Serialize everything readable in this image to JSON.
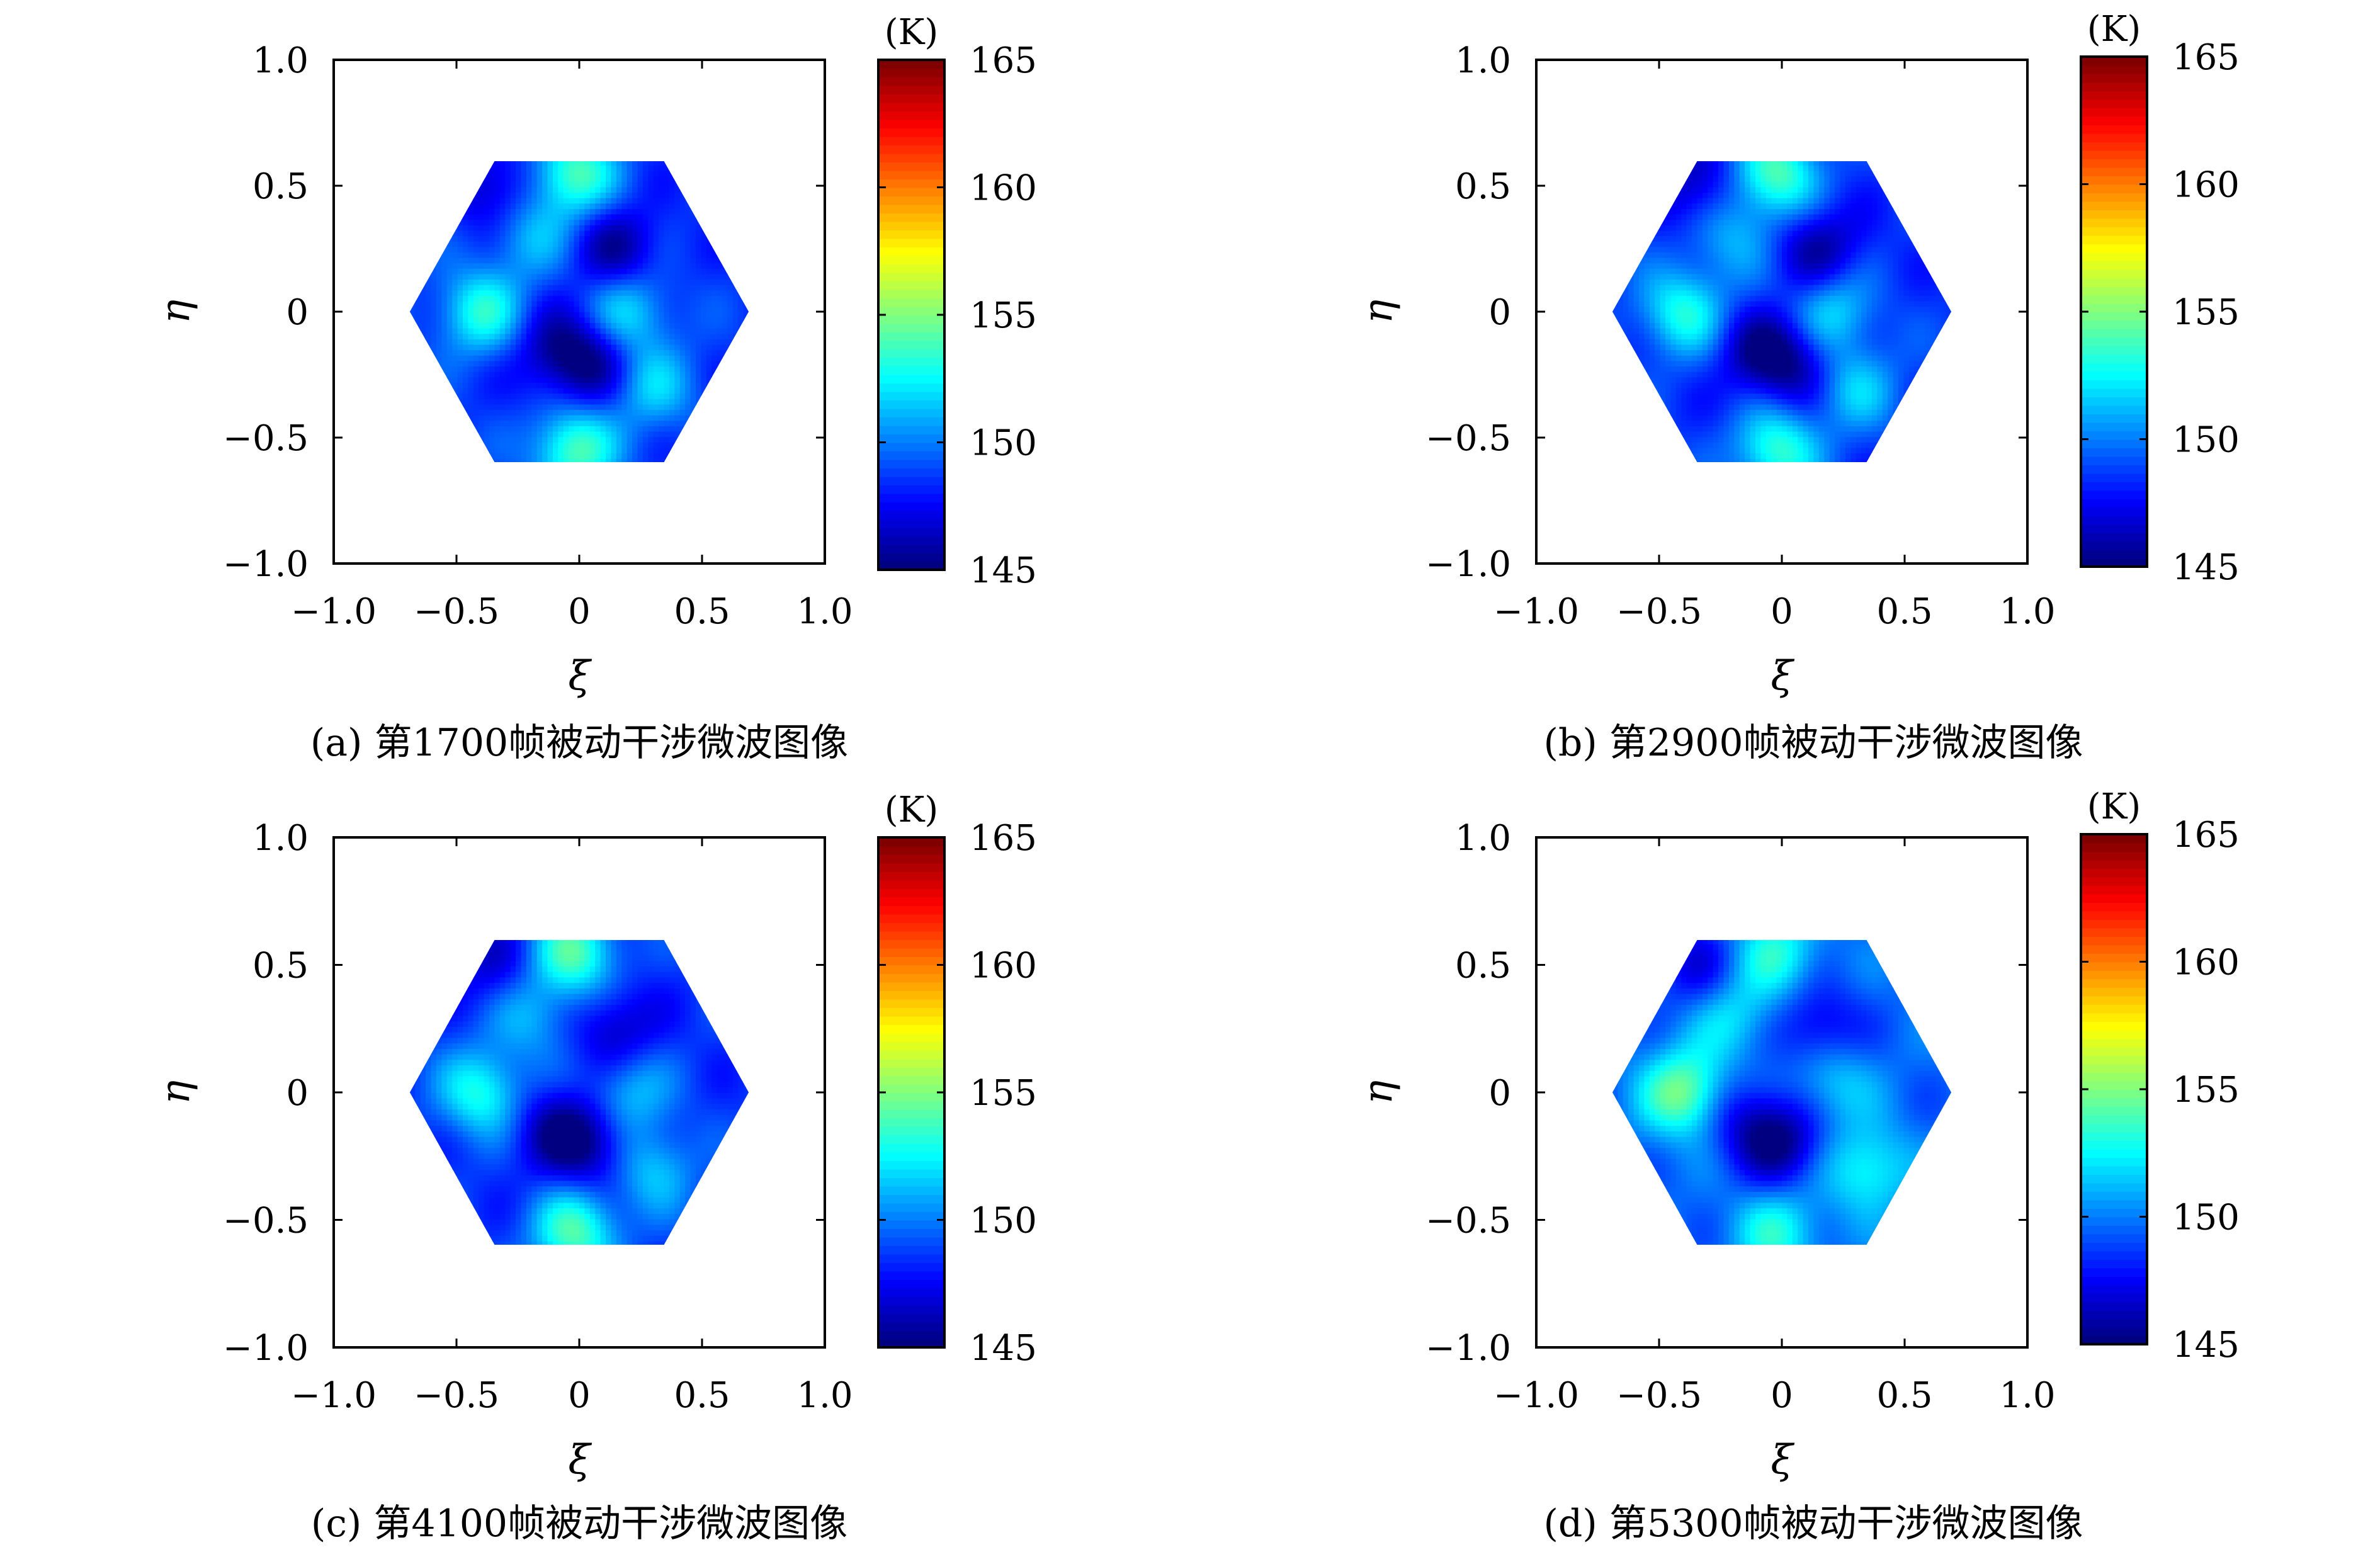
{
  "chart_data": [
    {
      "type": "heatmap",
      "caption": "(a) 第1700帧被动干涉微波图像",
      "xlabel": "ξ",
      "ylabel": "η",
      "xlim": [
        -1.0,
        1.0
      ],
      "ylim": [
        -1.0,
        1.0
      ],
      "xticks": [
        -1.0,
        -0.5,
        0,
        0.5,
        1.0
      ],
      "yticks": [
        -1.0,
        -0.5,
        0,
        0.5,
        1.0
      ],
      "xtick_labels": [
        "−1.0",
        "−0.5",
        "0",
        "0.5",
        "1.0"
      ],
      "ytick_labels": [
        "−1.0",
        "−0.5",
        "0",
        "0.5",
        "1.0"
      ],
      "colorbar": {
        "label": "(K)",
        "range": [
          145,
          165
        ],
        "ticks": [
          145,
          150,
          155,
          160,
          165
        ],
        "tick_labels": [
          "145",
          "150",
          "155",
          "160",
          "165"
        ],
        "colormap": "jet"
      },
      "domain": "hexagon, radius 0.69",
      "base_level": 148.5,
      "features": [
        {
          "xi": -0.4,
          "eta": 0.0,
          "value": 153.0
        },
        {
          "xi": -0.02,
          "eta": 0.55,
          "value": 154.0
        },
        {
          "xi": -0.02,
          "eta": -0.55,
          "value": 154.0
        },
        {
          "xi": 0.2,
          "eta": 0.0,
          "value": 152.0
        },
        {
          "xi": 0.3,
          "eta": -0.3,
          "value": 151.5
        },
        {
          "xi": -0.2,
          "eta": 0.3,
          "value": 151.0
        },
        {
          "xi": 0.05,
          "eta": -0.2,
          "value": 145.5
        },
        {
          "xi": 0.15,
          "eta": 0.25,
          "value": 145.5
        },
        {
          "xi": -0.1,
          "eta": -0.15,
          "value": 146.0
        },
        {
          "xi": -0.35,
          "eta": 0.5,
          "value": 146.0
        }
      ]
    },
    {
      "type": "heatmap",
      "caption": "(b) 第2900帧被动干涉微波图像",
      "xlabel": "ξ",
      "ylabel": "η",
      "xlim": [
        -1.0,
        1.0
      ],
      "ylim": [
        -1.0,
        1.0
      ],
      "xticks": [
        -1.0,
        -0.5,
        0,
        0.5,
        1.0
      ],
      "yticks": [
        -1.0,
        -0.5,
        0,
        0.5,
        1.0
      ],
      "xtick_labels": [
        "−1.0",
        "−0.5",
        "0",
        "0.5",
        "1.0"
      ],
      "ytick_labels": [
        "−1.0",
        "−0.5",
        "0",
        "0.5",
        "1.0"
      ],
      "colorbar": {
        "label": "(K)",
        "range": [
          145,
          165
        ],
        "ticks": [
          145,
          150,
          155,
          160,
          165
        ],
        "tick_labels": [
          "145",
          "150",
          "155",
          "160",
          "165"
        ],
        "colormap": "jet"
      },
      "domain": "hexagon, radius 0.69",
      "base_level": 148.5,
      "features": [
        {
          "xi": -0.4,
          "eta": 0.0,
          "value": 153.0
        },
        {
          "xi": -0.02,
          "eta": 0.55,
          "value": 154.0
        },
        {
          "xi": -0.02,
          "eta": -0.55,
          "value": 153.5
        },
        {
          "xi": 0.2,
          "eta": 0.0,
          "value": 152.0
        },
        {
          "xi": 0.3,
          "eta": -0.3,
          "value": 151.5
        },
        {
          "xi": -0.2,
          "eta": 0.3,
          "value": 151.0
        },
        {
          "xi": 0.05,
          "eta": -0.2,
          "value": 145.5
        },
        {
          "xi": 0.15,
          "eta": 0.25,
          "value": 145.5
        },
        {
          "xi": -0.1,
          "eta": -0.15,
          "value": 146.0
        },
        {
          "xi": -0.35,
          "eta": 0.5,
          "value": 146.0
        }
      ]
    },
    {
      "type": "heatmap",
      "caption": "(c) 第4100帧被动干涉微波图像",
      "xlabel": "ξ",
      "ylabel": "η",
      "xlim": [
        -1.0,
        1.0
      ],
      "ylim": [
        -1.0,
        1.0
      ],
      "xticks": [
        -1.0,
        -0.5,
        0,
        0.5,
        1.0
      ],
      "yticks": [
        -1.0,
        -0.5,
        0,
        0.5,
        1.0
      ],
      "xtick_labels": [
        "−1.0",
        "−0.5",
        "0",
        "0.5",
        "1.0"
      ],
      "ytick_labels": [
        "−1.0",
        "−0.5",
        "0",
        "0.5",
        "1.0"
      ],
      "colorbar": {
        "label": "(K)",
        "range": [
          145,
          165
        ],
        "ticks": [
          145,
          150,
          155,
          160,
          165
        ],
        "tick_labels": [
          "145",
          "150",
          "155",
          "160",
          "165"
        ],
        "colormap": "jet"
      },
      "domain": "hexagon, radius 0.69",
      "base_level": 148.5,
      "features": [
        {
          "xi": -0.4,
          "eta": 0.0,
          "value": 153.0
        },
        {
          "xi": -0.02,
          "eta": 0.55,
          "value": 154.0
        },
        {
          "xi": -0.02,
          "eta": -0.55,
          "value": 154.0
        },
        {
          "xi": 0.2,
          "eta": 0.0,
          "value": 151.5
        },
        {
          "xi": 0.3,
          "eta": -0.3,
          "value": 151.5
        },
        {
          "xi": -0.2,
          "eta": 0.3,
          "value": 151.0
        },
        {
          "xi": 0.05,
          "eta": -0.2,
          "value": 145.5
        },
        {
          "xi": 0.15,
          "eta": 0.25,
          "value": 146.0
        },
        {
          "xi": -0.1,
          "eta": -0.15,
          "value": 146.0
        },
        {
          "xi": -0.35,
          "eta": 0.5,
          "value": 146.5
        }
      ]
    },
    {
      "type": "heatmap",
      "caption": "(d) 第5300帧被动干涉微波图像",
      "xlabel": "ξ",
      "ylabel": "η",
      "xlim": [
        -1.0,
        1.0
      ],
      "ylim": [
        -1.0,
        1.0
      ],
      "xticks": [
        -1.0,
        -0.5,
        0,
        0.5,
        1.0
      ],
      "yticks": [
        -1.0,
        -0.5,
        0,
        0.5,
        1.0
      ],
      "xtick_labels": [
        "−1.0",
        "−0.5",
        "0",
        "0.5",
        "1.0"
      ],
      "ytick_labels": [
        "−1.0",
        "−0.5",
        "0",
        "0.5",
        "1.0"
      ],
      "colorbar": {
        "label": "(K)",
        "range": [
          145,
          165
        ],
        "ticks": [
          145,
          150,
          155,
          160,
          165
        ],
        "tick_labels": [
          "145",
          "150",
          "155",
          "160",
          "165"
        ],
        "colormap": "jet"
      },
      "domain": "hexagon, radius 0.69",
      "base_level": 149.5,
      "features": [
        {
          "xi": -0.4,
          "eta": 0.0,
          "value": 155.0
        },
        {
          "xi": -0.02,
          "eta": 0.55,
          "value": 153.0
        },
        {
          "xi": -0.02,
          "eta": -0.55,
          "value": 153.0
        },
        {
          "xi": 0.2,
          "eta": 0.05,
          "value": 152.0
        },
        {
          "xi": 0.35,
          "eta": -0.3,
          "value": 153.0
        },
        {
          "xi": -0.2,
          "eta": 0.3,
          "value": 152.0
        },
        {
          "xi": 0.0,
          "eta": -0.2,
          "value": 145.5
        },
        {
          "xi": 0.15,
          "eta": 0.25,
          "value": 146.5
        },
        {
          "xi": -0.15,
          "eta": -0.1,
          "value": 147.0
        },
        {
          "xi": -0.35,
          "eta": 0.5,
          "value": 147.0
        }
      ]
    }
  ]
}
